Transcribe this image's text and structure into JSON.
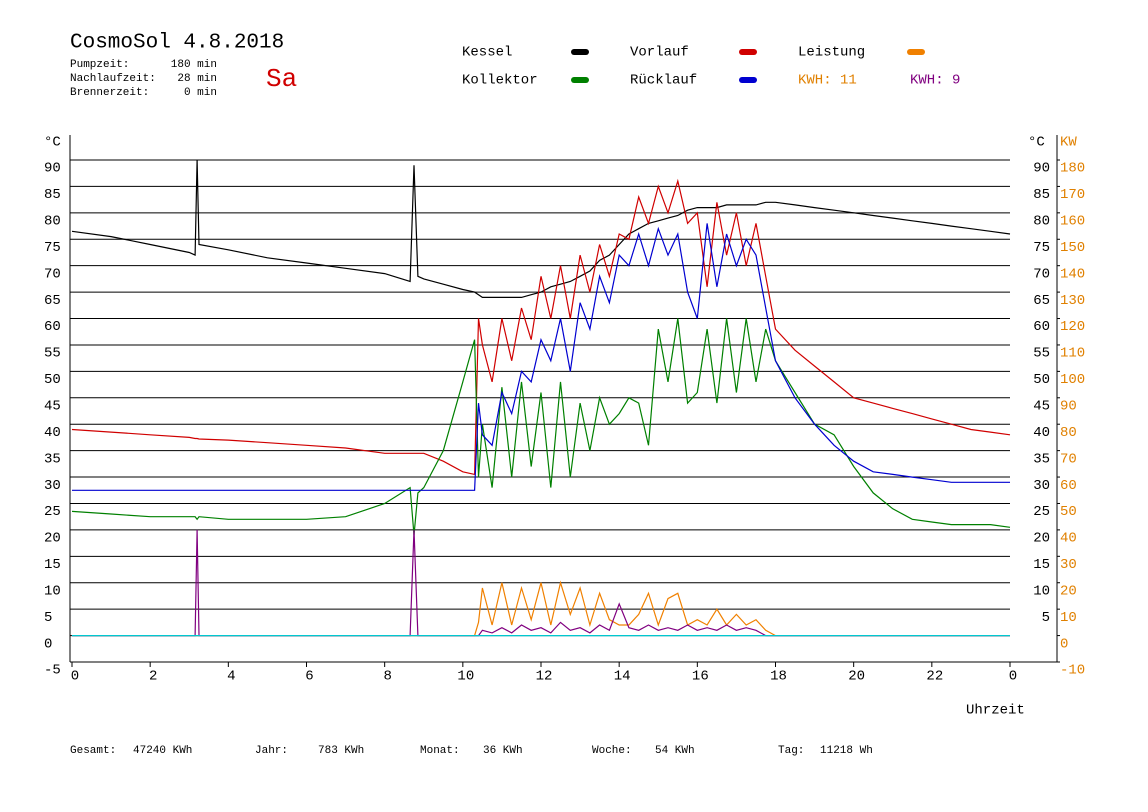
{
  "header": {
    "title": "CosmoSol 4.8.2018",
    "day": "Sa",
    "stats": [
      [
        "Pumpzeit:",
        "180 min"
      ],
      [
        "Nachlaufzeit:",
        "28 min"
      ],
      [
        "Brennerzeit:",
        "0 min"
      ]
    ],
    "kwh_total": "KWH: 11"
  },
  "footer": [
    [
      "Gesamt:",
      "47240 KWh"
    ],
    [
      "Jahr:",
      "783 KWh"
    ],
    [
      "Monat:",
      "36 KWh"
    ],
    [
      "Woche:",
      "54 KWh"
    ],
    [
      "Tag:",
      "11218 Wh"
    ]
  ],
  "chart_data": {
    "type": "line",
    "y_label": "°C",
    "y2_label_c": "°C",
    "y2_label": "KW",
    "x_label": "Uhrzeit",
    "x": [
      0,
      1,
      2,
      3,
      3.15,
      3.2,
      3.25,
      4,
      5,
      6,
      7,
      8,
      8.65,
      8.75,
      8.85,
      9,
      9.5,
      10,
      10.3,
      10.4,
      10.5,
      10.75,
      11,
      11.25,
      11.5,
      11.75,
      12,
      12.25,
      12.5,
      12.75,
      13,
      13.25,
      13.5,
      13.75,
      14,
      14.25,
      14.5,
      14.75,
      15,
      15.25,
      15.5,
      15.75,
      16,
      16.25,
      16.5,
      16.75,
      17,
      17.25,
      17.5,
      17.75,
      18,
      18.5,
      19,
      19.5,
      20,
      20.5,
      21,
      21.5,
      22,
      22.5,
      23,
      23.5,
      24
    ],
    "xlim": [
      0,
      24
    ],
    "xticks": [
      0,
      2,
      4,
      6,
      8,
      10,
      12,
      14,
      16,
      18,
      20,
      22,
      {
        "value": 24,
        "label": "0"
      }
    ],
    "ylim": [
      -5,
      90
    ],
    "yticks": [
      -5,
      0,
      5,
      10,
      15,
      20,
      25,
      30,
      35,
      40,
      45,
      50,
      55,
      60,
      65,
      70,
      75,
      80,
      85,
      90
    ],
    "y2lim": [
      -10,
      180
    ],
    "y2ticks": [
      -10,
      0,
      10,
      20,
      30,
      40,
      50,
      60,
      70,
      80,
      90,
      100,
      110,
      120,
      130,
      140,
      150,
      160,
      170,
      180
    ],
    "grid": true,
    "series": [
      {
        "name": "Kessel",
        "color": "#000000",
        "values": [
          76.5,
          75.5,
          74,
          72.5,
          72,
          90,
          74,
          73,
          71.5,
          70.5,
          69.5,
          68.5,
          67,
          89,
          68,
          67.5,
          66.5,
          65.5,
          65,
          64.5,
          64,
          64,
          64,
          64,
          64,
          64.5,
          65,
          66,
          66.5,
          67,
          68,
          69,
          71,
          72,
          74,
          76,
          77,
          78,
          78.5,
          79,
          79.5,
          80.5,
          81,
          81,
          81,
          81.5,
          81.5,
          81.5,
          81.5,
          82,
          82,
          81.5,
          81,
          80.5,
          80,
          79.5,
          79,
          78.5,
          78,
          77.5,
          77,
          76.5,
          76
        ]
      },
      {
        "name": "Vorlauf",
        "color": "#d00000",
        "values": [
          39,
          38.5,
          38,
          37.5,
          37.3,
          37.3,
          37.2,
          37,
          36.5,
          36,
          35.5,
          34.5,
          34.5,
          34.5,
          34.5,
          34.5,
          33,
          31,
          30.5,
          60,
          55,
          48,
          60,
          52,
          62,
          56,
          68,
          60,
          70,
          60,
          72,
          65,
          74,
          68,
          76,
          75,
          83,
          78,
          85,
          80,
          86,
          78,
          80,
          66,
          82,
          72,
          80,
          70,
          78,
          68,
          58,
          54,
          51,
          48,
          45,
          44,
          43,
          42,
          41,
          40,
          39,
          38.5,
          38
        ]
      },
      {
        "name": "Leistung",
        "color": "#f08000",
        "axis": "y2",
        "values": [
          0,
          0,
          0,
          0,
          0,
          0,
          0,
          0,
          0,
          0,
          0,
          0,
          0,
          0,
          0,
          0,
          0,
          0,
          0,
          5,
          18,
          4,
          20,
          4,
          18,
          6,
          20,
          4,
          20,
          8,
          18,
          4,
          16,
          6,
          4,
          4,
          8,
          16,
          4,
          14,
          16,
          4,
          6,
          4,
          10,
          4,
          8,
          4,
          6,
          2,
          0,
          0,
          0,
          0,
          0,
          0,
          0,
          0,
          0,
          0,
          0,
          0,
          0
        ]
      },
      {
        "name": "Kollektor",
        "color": "#008000",
        "values": [
          23.5,
          23,
          22.5,
          22.5,
          22.5,
          22,
          22.5,
          22,
          22,
          22,
          22.5,
          25,
          28,
          19,
          27,
          28,
          35,
          48,
          56,
          30,
          40,
          28,
          47,
          30,
          48,
          32,
          46,
          28,
          48,
          30,
          44,
          35,
          45,
          40,
          42,
          45,
          44,
          36,
          58,
          48,
          60,
          44,
          46,
          58,
          44,
          60,
          46,
          60,
          48,
          58,
          52,
          46,
          40,
          38,
          32,
          27,
          24,
          22,
          21.5,
          21,
          21,
          21,
          20.5
        ]
      },
      {
        "name": "Rücklauf",
        "color": "#0000d0",
        "values": [
          27.5,
          27.5,
          27.5,
          27.5,
          27.5,
          27.5,
          27.5,
          27.5,
          27.5,
          27.5,
          27.5,
          27.5,
          27.5,
          27.5,
          27.5,
          27.5,
          27.5,
          27.5,
          27.5,
          44,
          38,
          36,
          46,
          42,
          50,
          48,
          56,
          52,
          60,
          50,
          63,
          58,
          68,
          63,
          72,
          70,
          76,
          70,
          77,
          72,
          76,
          65,
          60,
          78,
          66,
          76,
          70,
          75,
          72,
          62,
          52,
          45,
          40,
          36,
          33,
          31,
          30.5,
          30,
          29.5,
          29,
          29,
          29,
          29
        ]
      },
      {
        "name": "KWH: 9",
        "color": "#800080",
        "axis": "y2",
        "values": [
          0,
          0,
          0,
          0,
          0,
          40,
          0,
          0,
          0,
          0,
          0,
          0,
          0,
          40,
          0,
          0,
          0,
          0,
          0,
          0,
          2,
          1,
          3,
          1,
          4,
          2,
          3,
          1,
          5,
          2,
          3,
          1,
          4,
          2,
          12,
          3,
          2,
          4,
          2,
          3,
          2,
          4,
          2,
          3,
          2,
          4,
          2,
          3,
          2,
          0,
          0,
          0,
          0,
          0,
          0,
          0,
          0,
          0,
          0,
          0,
          0,
          0,
          0
        ]
      },
      {
        "color": "#00c8d0",
        "values": [
          0,
          0,
          0,
          0,
          0,
          0,
          0,
          0,
          0,
          0,
          0,
          0,
          0,
          0,
          0,
          0,
          0,
          0,
          0,
          0,
          0,
          0,
          0,
          0,
          0,
          0,
          0,
          0,
          0,
          0,
          0,
          0,
          0,
          0,
          0,
          0,
          0,
          0,
          0,
          0,
          0,
          0,
          0,
          0,
          0,
          0,
          0,
          0,
          0,
          0,
          0,
          0,
          0,
          0,
          0,
          0,
          0,
          0,
          0,
          0,
          0,
          0,
          0
        ]
      }
    ]
  }
}
